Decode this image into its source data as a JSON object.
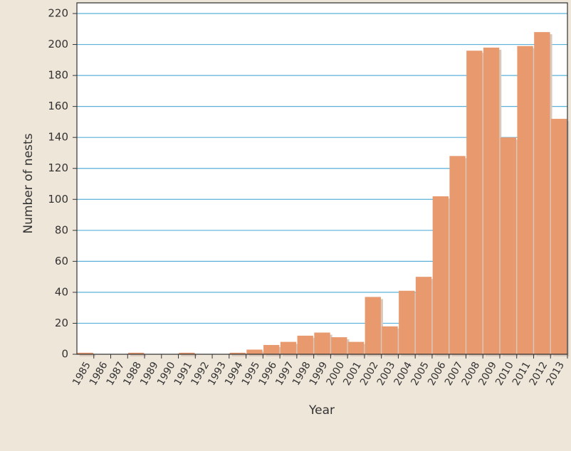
{
  "chart_data": {
    "type": "bar",
    "x_label": "Year",
    "y_label": "Number of nests",
    "categories": [
      "1985",
      "1986",
      "1987",
      "1988",
      "1989",
      "1990",
      "1991",
      "1992",
      "1993",
      "1994",
      "1995",
      "1996",
      "1997",
      "1998",
      "1999",
      "2000",
      "2001",
      "2002",
      "2003",
      "2004",
      "2005",
      "2006",
      "2007",
      "2008",
      "2009",
      "2010",
      "2011",
      "2012",
      "2013"
    ],
    "values": [
      1,
      0,
      0,
      1,
      0,
      0,
      1,
      0,
      0,
      1,
      3,
      6,
      8,
      12,
      14,
      11,
      8,
      37,
      18,
      41,
      50,
      102,
      128,
      196,
      198,
      140,
      199,
      208,
      152
    ],
    "color": "#e8996e",
    "ylim": [
      0,
      220
    ],
    "yticks": [
      0,
      20,
      40,
      60,
      80,
      100,
      120,
      140,
      160,
      180,
      200,
      220
    ],
    "grid": true
  }
}
